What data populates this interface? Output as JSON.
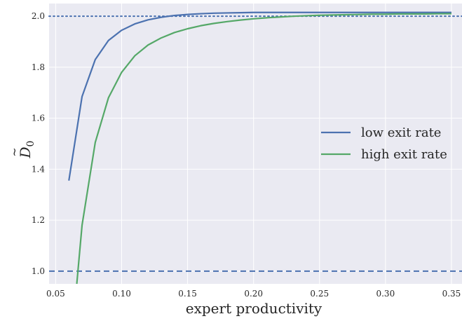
{
  "chart_data": {
    "type": "line",
    "title": "",
    "xlabel": "expert productivity",
    "ylabel_main": "D",
    "ylabel_accent": "~",
    "ylabel_sub": "0",
    "xlim": [
      0.045,
      0.358
    ],
    "ylim": [
      0.95,
      2.05
    ],
    "x_ticks": [
      0.05,
      0.1,
      0.15,
      0.2,
      0.25,
      0.3,
      0.35
    ],
    "x_tick_labels": [
      "0.05",
      "0.10",
      "0.15",
      "0.20",
      "0.25",
      "0.30",
      "0.35"
    ],
    "y_ticks": [
      1.0,
      1.2,
      1.4,
      1.6,
      1.8,
      2.0
    ],
    "y_tick_labels": [
      "1.0",
      "1.2",
      "1.4",
      "1.6",
      "1.8",
      "2.0"
    ],
    "grid": true,
    "background": "#eaeaf2",
    "legend_position": "center-right",
    "series": [
      {
        "name": "low exit rate",
        "color": "#4c72b0",
        "x": [
          0.06,
          0.07,
          0.08,
          0.09,
          0.1,
          0.11,
          0.12,
          0.13,
          0.14,
          0.15,
          0.16,
          0.17,
          0.18,
          0.19,
          0.2,
          0.21,
          0.22,
          0.23,
          0.24,
          0.25,
          0.26,
          0.27,
          0.28,
          0.29,
          0.3,
          0.31,
          0.32,
          0.33,
          0.34,
          0.35
        ],
        "y": [
          1.355,
          1.685,
          1.83,
          1.905,
          1.945,
          1.97,
          1.986,
          1.996,
          2.003,
          2.007,
          2.01,
          2.012,
          2.013,
          2.014,
          2.015,
          2.015,
          2.015,
          2.015,
          2.015,
          2.015,
          2.015,
          2.015,
          2.015,
          2.015,
          2.015,
          2.015,
          2.015,
          2.015,
          2.015,
          2.015
        ]
      },
      {
        "name": "high exit rate",
        "color": "#55a868",
        "x": [
          0.066,
          0.07,
          0.08,
          0.09,
          0.1,
          0.11,
          0.12,
          0.13,
          0.14,
          0.15,
          0.16,
          0.17,
          0.18,
          0.19,
          0.2,
          0.21,
          0.22,
          0.23,
          0.24,
          0.25,
          0.26,
          0.27,
          0.28,
          0.29,
          0.3,
          0.31,
          0.32,
          0.33,
          0.34,
          0.35
        ],
        "y": [
          0.95,
          1.18,
          1.505,
          1.68,
          1.78,
          1.845,
          1.887,
          1.915,
          1.936,
          1.951,
          1.963,
          1.972,
          1.979,
          1.985,
          1.99,
          1.994,
          1.997,
          2.0,
          2.002,
          2.004,
          2.005,
          2.006,
          2.007,
          2.008,
          2.008,
          2.009,
          2.009,
          2.009,
          2.01,
          2.01
        ]
      }
    ],
    "reference_lines": [
      {
        "name": "dotted-line",
        "y": 2.0,
        "style": "dotted",
        "color": "#4c72b0"
      },
      {
        "name": "dashed-line",
        "y": 1.0,
        "style": "dashed",
        "color": "#4c72b0"
      }
    ]
  }
}
